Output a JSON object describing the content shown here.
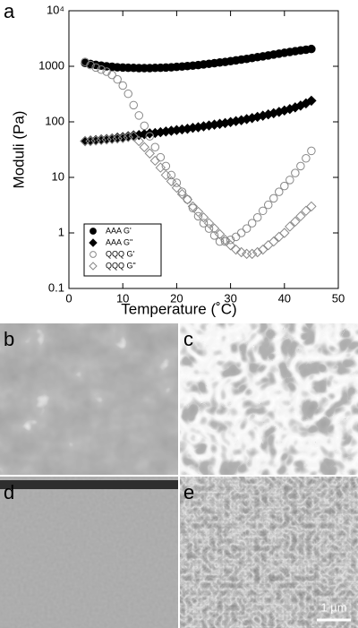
{
  "chart_data": {
    "type": "scatter",
    "panel_label": "a",
    "x_label": "Temperature (˚C)",
    "y_label": "Moduli (Pa)",
    "x": [
      3,
      4,
      5,
      6,
      7,
      8,
      9,
      10,
      11,
      12,
      13,
      14,
      15,
      16,
      17,
      18,
      19,
      20,
      21,
      22,
      23,
      24,
      25,
      26,
      27,
      28,
      29,
      30,
      31,
      32,
      33,
      34,
      35,
      36,
      37,
      38,
      39,
      40,
      41,
      42,
      43,
      44,
      45
    ],
    "series": [
      {
        "name": "AAA G'",
        "color": "#000000",
        "marker": "circle",
        "filled": true,
        "values": [
          1150,
          1100,
          1060,
          1030,
          1000,
          980,
          960,
          950,
          940,
          935,
          930,
          930,
          930,
          935,
          940,
          950,
          960,
          975,
          990,
          1010,
          1030,
          1050,
          1080,
          1110,
          1140,
          1170,
          1200,
          1240,
          1280,
          1320,
          1360,
          1410,
          1460,
          1510,
          1570,
          1630,
          1690,
          1750,
          1810,
          1870,
          1930,
          1990,
          2050
        ]
      },
      {
        "name": "AAA G\"",
        "color": "#000000",
        "marker": "diamond",
        "filled": true,
        "values": [
          45,
          46,
          47,
          48,
          49,
          50,
          52,
          53,
          55,
          57,
          58,
          60,
          62,
          63,
          65,
          67,
          69,
          71,
          73,
          75,
          78,
          80,
          83,
          86,
          89,
          92,
          95,
          99,
          103,
          107,
          112,
          117,
          123,
          129,
          136,
          143,
          151,
          160,
          170,
          182,
          196,
          215,
          240
        ]
      },
      {
        "name": "QQQ G'",
        "color": "#888888",
        "marker": "circle",
        "filled": false,
        "values": [
          1200,
          1050,
          950,
          870,
          800,
          700,
          580,
          450,
          320,
          200,
          130,
          85,
          55,
          35,
          23,
          16,
          11,
          8,
          5.5,
          4,
          2.8,
          2,
          1.5,
          1.2,
          0.9,
          0.7,
          0.7,
          0.75,
          0.85,
          1,
          1.2,
          1.5,
          1.9,
          2.5,
          3.2,
          4.2,
          5.5,
          7,
          9,
          12,
          16,
          22,
          30
        ]
      },
      {
        "name": "QQQ G\"",
        "color": "#888888",
        "marker": "diamond",
        "filled": false,
        "values": [
          45,
          45,
          46,
          47,
          48,
          49,
          50,
          51,
          53,
          55,
          45,
          35,
          27,
          20,
          15,
          11,
          8.5,
          6.5,
          5,
          4,
          3,
          2.4,
          1.9,
          1.5,
          1.2,
          0.95,
          0.75,
          0.6,
          0.5,
          0.45,
          0.42,
          0.42,
          0.45,
          0.5,
          0.6,
          0.7,
          0.85,
          1,
          1.3,
          1.6,
          2,
          2.5,
          3
        ]
      }
    ],
    "xlim": [
      0,
      50
    ],
    "xticks": [
      0,
      10,
      20,
      30,
      40,
      50
    ],
    "ylim": [
      0.1,
      10000
    ],
    "log_y": true,
    "yticks": [
      0.1,
      1,
      10,
      100,
      1000,
      {
        "value": 10000,
        "label": "10⁴"
      }
    ],
    "legend": "lower left"
  },
  "panels": [
    {
      "label": "b"
    },
    {
      "label": "c"
    },
    {
      "label": "d"
    },
    {
      "label": "e"
    }
  ],
  "scale_bar": "1 µm"
}
